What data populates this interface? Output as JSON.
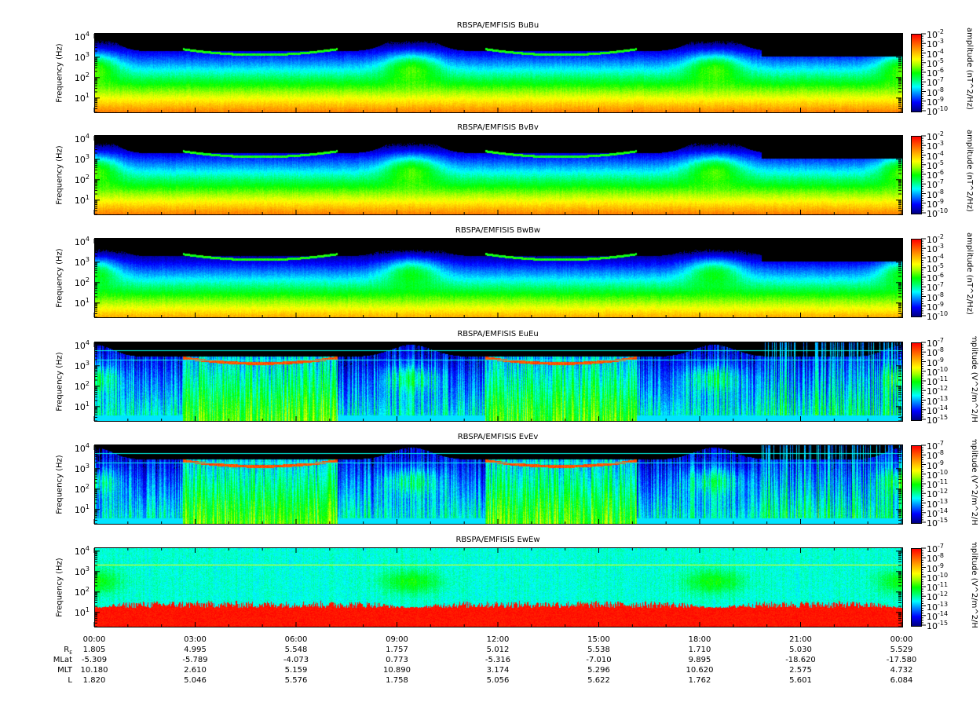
{
  "chart_data": {
    "type": "heatmap",
    "ylabel": "Frequency (Hz)",
    "yscale": "log",
    "ylim": [
      2,
      14000
    ],
    "y_ticks": [
      "10^1",
      "10^2",
      "10^3",
      "10^4"
    ],
    "x_ticks": [
      "00:00",
      "03:00",
      "06:00",
      "09:00",
      "12:00",
      "15:00",
      "18:00",
      "21:00",
      "00:00"
    ],
    "colormap": "jet",
    "panels": [
      {
        "title": "RBSPA/EMFISIS  BuBu",
        "kind": "B",
        "colorbar_label": "amplitude (nT^2/Hz)",
        "colorbar_exponents": [
          "-2",
          "-3",
          "-4",
          "-5",
          "-6",
          "-7",
          "-8",
          "-9",
          "-10"
        ],
        "zscale": "log",
        "zlim": [
          1e-10,
          0.01
        ]
      },
      {
        "title": "RBSPA/EMFISIS  BvBv",
        "kind": "B",
        "colorbar_label": "amplitude (nT^2/Hz)",
        "colorbar_exponents": [
          "-2",
          "-3",
          "-4",
          "-5",
          "-6",
          "-7",
          "-8",
          "-9",
          "-10"
        ],
        "zscale": "log",
        "zlim": [
          1e-10,
          0.01
        ]
      },
      {
        "title": "RBSPA/EMFISIS  BwBw",
        "kind": "B3",
        "colorbar_label": "amplitude (nT^2/Hz)",
        "colorbar_exponents": [
          "-2",
          "-3",
          "-4",
          "-5",
          "-6",
          "-7",
          "-8",
          "-9",
          "-10"
        ],
        "zscale": "log",
        "zlim": [
          1e-10,
          0.01
        ]
      },
      {
        "title": "RBSPA/EMFISIS  EuEu",
        "kind": "E",
        "colorbar_label": "amplitude (V^2/m^2/Hz)",
        "colorbar_exponents": [
          "-7",
          "-8",
          "-9",
          "-10",
          "-11",
          "-12",
          "-13",
          "-14",
          "-15"
        ],
        "zscale": "log",
        "zlim": [
          1e-15,
          1e-07
        ]
      },
      {
        "title": "RBSPA/EMFISIS  EvEv",
        "kind": "E",
        "colorbar_label": "amplitude (V^2/m^2/Hz)",
        "colorbar_exponents": [
          "-7",
          "-8",
          "-9",
          "-10",
          "-11",
          "-12",
          "-13",
          "-14",
          "-15"
        ],
        "zscale": "log",
        "zlim": [
          1e-15,
          1e-07
        ]
      },
      {
        "title": "RBSPA/EMFISIS  EwEw",
        "kind": "Ew",
        "colorbar_label": "amplitude (V^2/m^2/Hz)",
        "colorbar_exponents": [
          "-7",
          "-8",
          "-9",
          "-10",
          "-11",
          "-12",
          "-13",
          "-14",
          "-15"
        ],
        "zscale": "log",
        "zlim": [
          1e-15,
          1e-07
        ]
      }
    ],
    "ephemeris": {
      "rows": [
        {
          "label": "R",
          "sub": "E",
          "values": [
            "1.805",
            "4.995",
            "5.548",
            "1.757",
            "5.012",
            "5.538",
            "1.710",
            "5.030",
            "5.529"
          ]
        },
        {
          "label": "MLat",
          "sub": "",
          "values": [
            "-5.309",
            "-5.789",
            "-4.073",
            "0.773",
            "-5.316",
            "-7.010",
            "9.895",
            "-18.620",
            "-17.580"
          ]
        },
        {
          "label": "MLT",
          "sub": "",
          "values": [
            "10.180",
            "2.610",
            "5.159",
            "10.890",
            "3.174",
            "5.296",
            "10.620",
            "2.575",
            "4.732"
          ]
        },
        {
          "label": "L",
          "sub": "",
          "values": [
            "1.820",
            "5.046",
            "5.576",
            "1.758",
            "5.056",
            "5.622",
            "1.762",
            "5.601",
            "6.084"
          ]
        }
      ]
    }
  }
}
